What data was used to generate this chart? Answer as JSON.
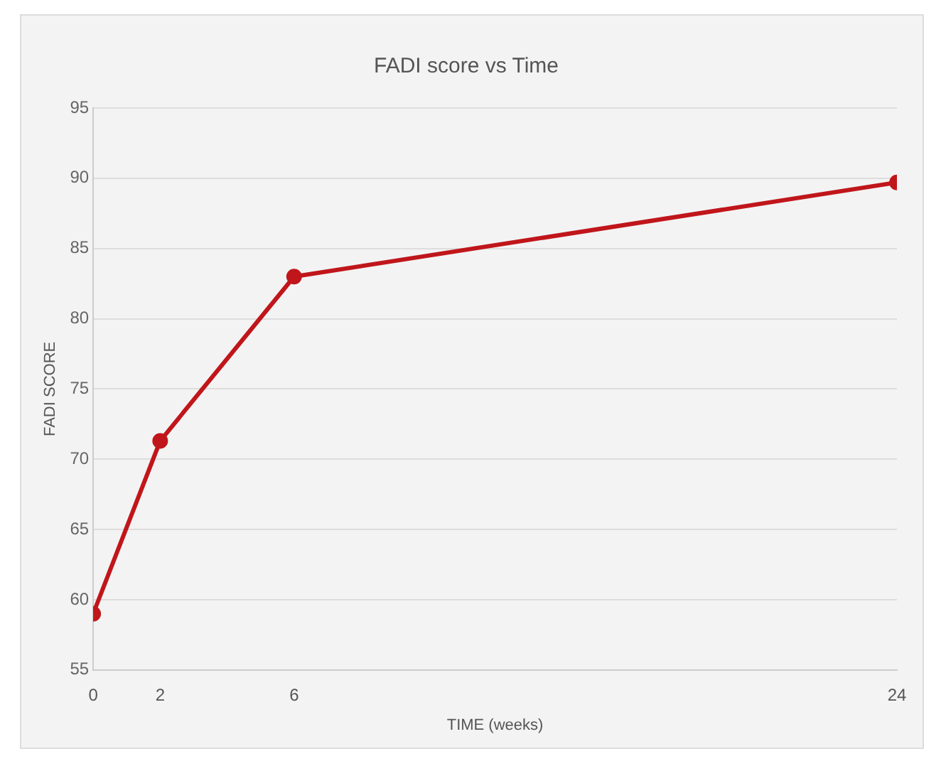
{
  "chart_data": {
    "type": "line",
    "title": "FADI score vs Time",
    "xlabel": "TIME (weeks)",
    "ylabel": "FADI SCORE",
    "x": [
      0,
      2,
      6,
      24
    ],
    "series": [
      {
        "color": "#c0161b",
        "values": [
          59,
          71.3,
          83,
          89.7
        ]
      }
    ],
    "xlim": [
      0,
      24
    ],
    "xticks": [
      0,
      2,
      6,
      24
    ],
    "ylim": [
      55,
      95
    ],
    "yticks": [
      55,
      60,
      65,
      70,
      75,
      80,
      85,
      90,
      95
    ],
    "grid": "y",
    "legend": false,
    "marker": "circle",
    "line_style": "solid"
  }
}
